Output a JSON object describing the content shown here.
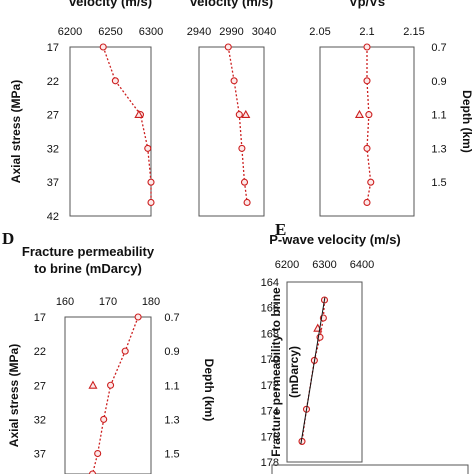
{
  "chart_data": [
    {
      "type": "line",
      "title": "velocity (m/s)",
      "ylabel": "Axial stress (MPa)",
      "xlim": [
        6200,
        6300
      ],
      "x_ticks": [
        "6200",
        "6250",
        "6300"
      ],
      "ylim": [
        17,
        42
      ],
      "y_ticks": [
        "17",
        "22",
        "27",
        "32",
        "37",
        "42"
      ],
      "series": [
        {
          "marker": "circle",
          "x": [
            6241,
            6256,
            6287,
            6296,
            6300,
            6300
          ],
          "y": [
            17,
            22,
            27,
            32,
            37,
            40
          ]
        },
        {
          "marker": "triangle",
          "x": [
            6285
          ],
          "y": [
            27
          ]
        }
      ]
    },
    {
      "type": "line",
      "title": "velocity (m/s)",
      "xlim": [
        2940,
        3040
      ],
      "x_ticks": [
        "2940",
        "2990",
        "3040"
      ],
      "ylim": [
        17,
        42
      ],
      "series": [
        {
          "marker": "circle",
          "x": [
            2985,
            2994,
            3002,
            3006,
            3010,
            3014
          ],
          "y": [
            17,
            22,
            27,
            32,
            37,
            40
          ]
        },
        {
          "marker": "triangle",
          "x": [
            3012
          ],
          "y": [
            27
          ]
        }
      ]
    },
    {
      "type": "line",
      "title": "Vp/Vs",
      "ylabel": "Depth (km)",
      "xlim": [
        2.05,
        2.15
      ],
      "x_ticks": [
        "2.05",
        "2.1",
        "2.15"
      ],
      "ylim": [
        17,
        42
      ],
      "y2_ticks": [
        "0.7",
        "0.9",
        "1.1",
        "1.3",
        "1.5"
      ],
      "series": [
        {
          "marker": "circle",
          "x": [
            2.1,
            2.1,
            2.102,
            2.1,
            2.104,
            2.1
          ],
          "y": [
            17,
            22,
            27,
            32,
            37,
            40
          ]
        },
        {
          "marker": "triangle",
          "x": [
            2.092
          ],
          "y": [
            27
          ]
        }
      ]
    },
    {
      "type": "line",
      "panel_letter": "D",
      "title": "Fracture permeability\nto brine (mDarcy)",
      "ylabel": "Axial  stress (MPa)",
      "y2label": "Depth  (km)",
      "xlim": [
        160,
        180
      ],
      "x_ticks": [
        "160",
        "170",
        "180"
      ],
      "ylim": [
        17,
        40
      ],
      "y_ticks": [
        "17",
        "22",
        "27",
        "32",
        "37"
      ],
      "y2_ticks": [
        "0.7",
        "0.9",
        "1.1",
        "1.3",
        "1.5"
      ],
      "series": [
        {
          "marker": "circle",
          "x": [
            177,
            174,
            170.6,
            169,
            167.6,
            166.4
          ],
          "y": [
            17,
            22,
            27,
            32,
            37,
            40
          ]
        },
        {
          "marker": "triangle",
          "x": [
            166.5
          ],
          "y": [
            27
          ]
        }
      ]
    },
    {
      "type": "scatter",
      "panel_letter": "E",
      "title": "P-wave velocity (m/s)",
      "ylabel": "Fracture permeability to brine\n(mDarcy)",
      "xlim": [
        6200,
        6400
      ],
      "x_ticks": [
        "6200",
        "6300",
        "6400"
      ],
      "ylim": [
        164,
        178
      ],
      "y_ticks": [
        "164",
        "166",
        "168",
        "170",
        "172",
        "174",
        "176",
        "178"
      ],
      "y_reversed": true,
      "series": [
        {
          "marker": "circle",
          "x": [
            6300,
            6297,
            6288,
            6273,
            6252,
            6240
          ],
          "y": [
            165.4,
            166.8,
            168.3,
            170.1,
            173.9,
            176.4
          ]
        },
        {
          "marker": "triangle",
          "x": [
            6282
          ],
          "y": [
            167.6
          ]
        },
        {
          "marker": "none",
          "line": "trend",
          "x": [
            6301,
            6237
          ],
          "y": [
            165.2,
            176.6
          ]
        }
      ]
    }
  ]
}
